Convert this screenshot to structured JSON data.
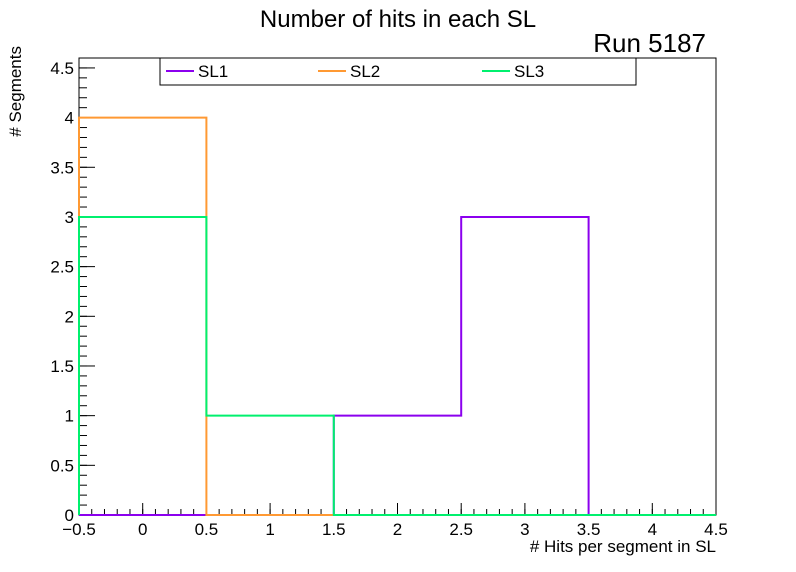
{
  "chart_data": {
    "type": "histogram-step",
    "title": "Number of hits in each SL",
    "subtitle": "Run 5187",
    "xlabel": "# Hits per segment in SL",
    "ylabel": "# Segments",
    "xlim": [
      -0.5,
      4.5
    ],
    "ylim": [
      0,
      4.6
    ],
    "bin_edges": [
      -0.5,
      0.5,
      1.5,
      2.5,
      3.5,
      4.5
    ],
    "x_ticks": [
      "−0.5",
      "0",
      "0.5",
      "1",
      "1.5",
      "2",
      "2.5",
      "3",
      "3.5",
      "4",
      "4.5"
    ],
    "x_tick_values": [
      -0.5,
      0,
      0.5,
      1,
      1.5,
      2,
      2.5,
      3,
      3.5,
      4,
      4.5
    ],
    "y_ticks": [
      "0",
      "0.5",
      "1",
      "1.5",
      "2",
      "2.5",
      "3",
      "3.5",
      "4",
      "4.5"
    ],
    "y_tick_values": [
      0,
      0.5,
      1,
      1.5,
      2,
      2.5,
      3,
      3.5,
      4,
      4.5
    ],
    "legend_placement": "top",
    "series": [
      {
        "name": "SL1",
        "color": "#8b00ee",
        "values": [
          0,
          0,
          1,
          3,
          0
        ]
      },
      {
        "name": "SL2",
        "color": "#ff9933",
        "values": [
          4,
          0,
          0,
          0,
          0
        ]
      },
      {
        "name": "SL3",
        "color": "#00f06e",
        "values": [
          3,
          1,
          0,
          0,
          0
        ]
      }
    ]
  }
}
